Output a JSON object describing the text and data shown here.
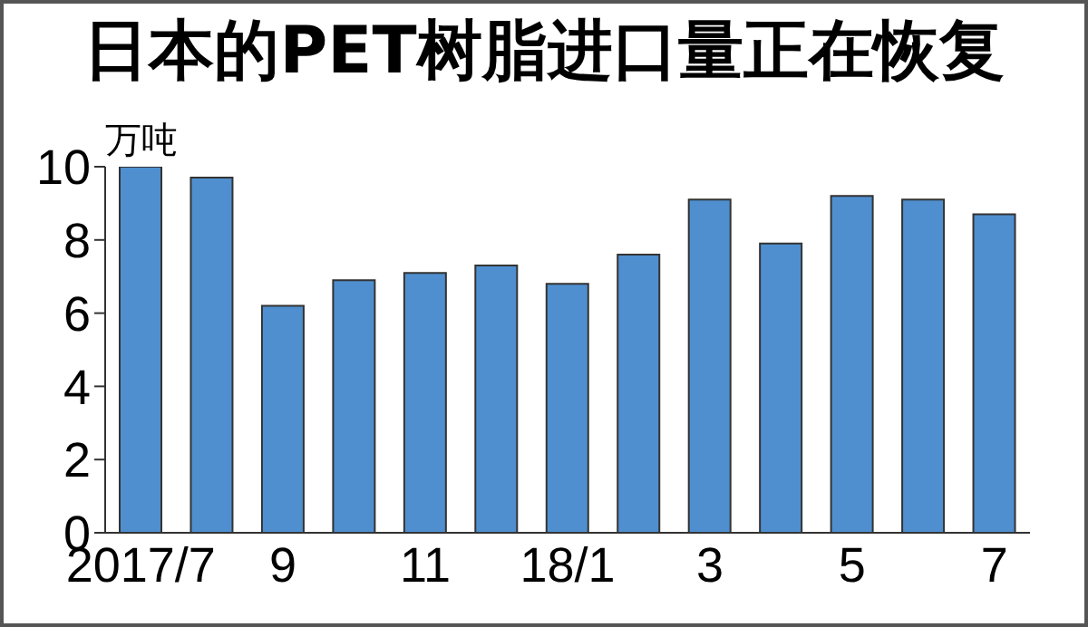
{
  "chart_data": {
    "type": "bar",
    "title": "日本的PET树脂进口量正在恢复",
    "ylabel": "万吨",
    "categories": [
      "2017/7",
      null,
      "9",
      null,
      "11",
      null,
      "18/1",
      null,
      "3",
      null,
      "5",
      null,
      "7"
    ],
    "values": [
      10.0,
      9.7,
      6.2,
      6.9,
      7.1,
      7.3,
      6.8,
      7.6,
      9.1,
      7.9,
      9.2,
      9.1,
      8.7
    ],
    "color": "#4f8fcf",
    "ylim": [
      0,
      10
    ],
    "yticks": [
      0,
      2,
      4,
      6,
      8,
      10
    ],
    "grid": false,
    "legend": false
  }
}
